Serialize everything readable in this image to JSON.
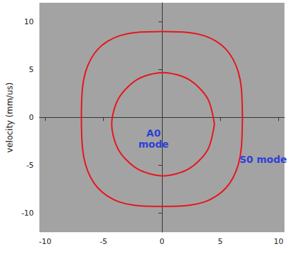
{
  "chart_data": {
    "type": "line",
    "ylabel": "velocity (mm/us)",
    "xlim": [
      -10.5,
      10.5
    ],
    "xticks": [
      -10,
      -5,
      0,
      5,
      10
    ],
    "ylim": [
      -12,
      12
    ],
    "yticks": [
      -10,
      -5,
      0,
      5,
      10
    ],
    "grid": false,
    "annotations": [
      {
        "text": "A0 mode",
        "color": "#2f3fd8"
      },
      {
        "text": "S0 mode",
        "color": "#2f3fd8"
      }
    ],
    "series": [
      {
        "color": "#e8141c",
        "values": [
          [
            4.5,
            -0.7
          ],
          [
            3.91,
            2.0
          ],
          [
            2.3,
            3.98
          ],
          [
            0.1,
            4.7
          ],
          [
            -2.1,
            3.98
          ],
          [
            -3.71,
            2.0
          ],
          [
            -4.3,
            -0.7
          ],
          [
            -3.71,
            -3.4
          ],
          [
            -2.1,
            -5.38
          ],
          [
            0.1,
            -6.1
          ],
          [
            2.3,
            -5.38
          ],
          [
            3.91,
            -3.4
          ],
          [
            4.5,
            -0.7
          ]
        ]
      },
      {
        "color": "#e8141c",
        "values": [
          [
            6.9,
            0
          ],
          [
            6.81,
            3.03
          ],
          [
            6.55,
            4.74
          ],
          [
            6.1,
            6.08
          ],
          [
            5.48,
            7.15
          ],
          [
            4.66,
            7.96
          ],
          [
            3.64,
            8.55
          ],
          [
            2.32,
            8.89
          ],
          [
            0,
            9.0
          ],
          [
            -2.32,
            8.89
          ],
          [
            -3.64,
            8.55
          ],
          [
            -4.66,
            7.96
          ],
          [
            -5.48,
            7.15
          ],
          [
            -6.1,
            6.08
          ],
          [
            -6.55,
            4.74
          ],
          [
            -6.81,
            3.03
          ],
          [
            -6.9,
            0
          ],
          [
            -6.81,
            -3.13
          ],
          [
            -6.55,
            -4.9
          ],
          [
            -6.1,
            -6.29
          ],
          [
            -5.48,
            -7.38
          ],
          [
            -4.66,
            -8.22
          ],
          [
            -3.64,
            -8.84
          ],
          [
            -2.32,
            -9.19
          ],
          [
            0,
            -9.3
          ],
          [
            2.32,
            -9.19
          ],
          [
            3.64,
            -8.84
          ],
          [
            4.66,
            -8.22
          ],
          [
            5.48,
            -7.38
          ],
          [
            6.1,
            -6.29
          ],
          [
            6.55,
            -4.9
          ],
          [
            6.81,
            -3.13
          ],
          [
            6.9,
            0
          ]
        ]
      }
    ]
  }
}
